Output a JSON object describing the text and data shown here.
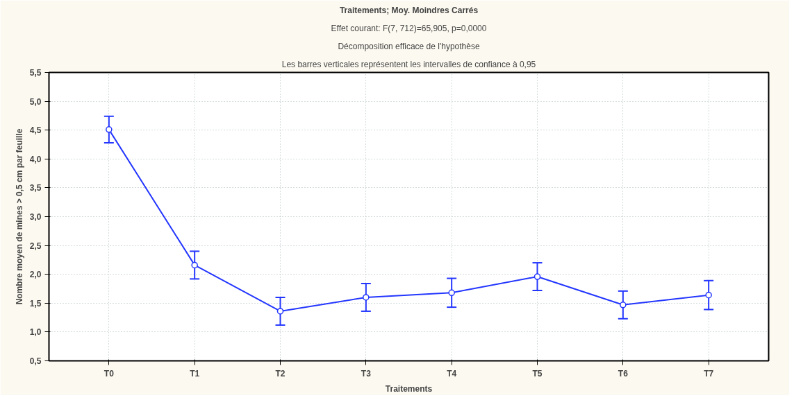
{
  "chart_data": {
    "type": "line",
    "title": "Traitements; Moy. Moindres Carrés",
    "subtitle": "Effet courant: F(7, 712)=65,905, p=0,0000",
    "annotations": [
      "Décomposition efficace de l'hypothèse",
      "Les barres verticales représentent les intervalles de confiance à 0,95"
    ],
    "xlabel": "Traitements",
    "ylabel": "Nombre moyen de mines > 0,5 cm par feuille",
    "categories": [
      "T0",
      "T1",
      "T2",
      "T3",
      "T4",
      "T5",
      "T6",
      "T7"
    ],
    "series": [
      {
        "color": "#2336ff",
        "values": [
          4.51,
          2.16,
          1.36,
          1.6,
          1.68,
          1.96,
          1.47,
          1.64
        ],
        "errors": [
          0.23,
          0.24,
          0.24,
          0.24,
          0.25,
          0.24,
          0.24,
          0.25
        ]
      }
    ],
    "ylim": [
      0.5,
      5.5
    ],
    "yticks": [
      {
        "value": 0.5,
        "label": "0,5"
      },
      {
        "value": 1.0,
        "label": "1,0"
      },
      {
        "value": 1.5,
        "label": "1,5"
      },
      {
        "value": 2.0,
        "label": "2,0"
      },
      {
        "value": 2.5,
        "label": "2,5"
      },
      {
        "value": 3.0,
        "label": "3,0"
      },
      {
        "value": 3.5,
        "label": "3,5"
      },
      {
        "value": 4.0,
        "label": "4,0"
      },
      {
        "value": 4.5,
        "label": "4,5"
      },
      {
        "value": 5.0,
        "label": "5,0"
      },
      {
        "value": 5.5,
        "label": "5,5"
      }
    ],
    "grid": true,
    "marker": "circle",
    "line_style": "solid"
  }
}
